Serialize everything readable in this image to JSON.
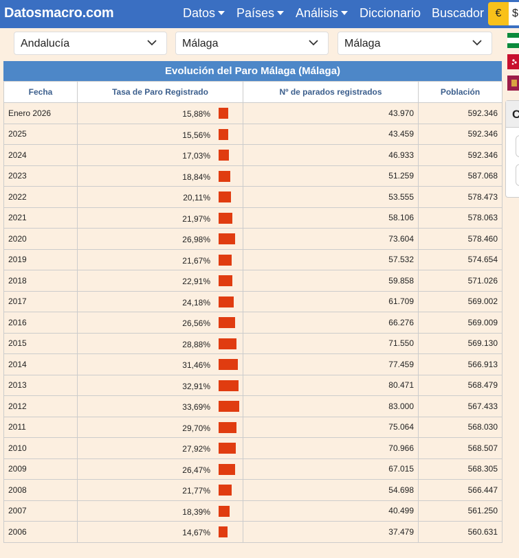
{
  "navbar": {
    "brand": "Datosmacro.com",
    "items": [
      {
        "label": "Datos",
        "dropdown": true
      },
      {
        "label": "Países",
        "dropdown": true
      },
      {
        "label": "Análisis",
        "dropdown": true
      },
      {
        "label": "Diccionario",
        "dropdown": false
      },
      {
        "label": "Buscador",
        "dropdown": false
      }
    ],
    "currency_selected": "€",
    "currency_other": "$",
    "accent": "#3a6fc2",
    "highlight": "#f9c11a"
  },
  "filters": {
    "region": "Andalucía",
    "province": "Málaga",
    "municipality": "Málaga",
    "icon": "chevron-down-icon"
  },
  "side_panel": {
    "heading": "C"
  },
  "table": {
    "caption": "Evolución del Paro Málaga (Málaga)",
    "headers": {
      "fecha": "Fecha",
      "tasa": "Tasa de Paro Registrado",
      "parados": "Nº de parados registrados",
      "poblacion": "Población"
    },
    "bar_color": "#e03c10",
    "rows": [
      {
        "fecha": "Enero 2026",
        "tasa": "15,88%",
        "tasa_value": 15.88,
        "parados": "43.970",
        "poblacion": "592.346"
      },
      {
        "fecha": "2025",
        "tasa": "15,56%",
        "tasa_value": 15.56,
        "parados": "43.459",
        "poblacion": "592.346"
      },
      {
        "fecha": "2024",
        "tasa": "17,03%",
        "tasa_value": 17.03,
        "parados": "46.933",
        "poblacion": "592.346"
      },
      {
        "fecha": "2023",
        "tasa": "18,84%",
        "tasa_value": 18.84,
        "parados": "51.259",
        "poblacion": "587.068"
      },
      {
        "fecha": "2022",
        "tasa": "20,11%",
        "tasa_value": 20.11,
        "parados": "53.555",
        "poblacion": "578.473"
      },
      {
        "fecha": "2021",
        "tasa": "21,97%",
        "tasa_value": 21.97,
        "parados": "58.106",
        "poblacion": "578.063"
      },
      {
        "fecha": "2020",
        "tasa": "26,98%",
        "tasa_value": 26.98,
        "parados": "73.604",
        "poblacion": "578.460"
      },
      {
        "fecha": "2019",
        "tasa": "21,67%",
        "tasa_value": 21.67,
        "parados": "57.532",
        "poblacion": "574.654"
      },
      {
        "fecha": "2018",
        "tasa": "22,91%",
        "tasa_value": 22.91,
        "parados": "59.858",
        "poblacion": "571.026"
      },
      {
        "fecha": "2017",
        "tasa": "24,18%",
        "tasa_value": 24.18,
        "parados": "61.709",
        "poblacion": "569.002"
      },
      {
        "fecha": "2016",
        "tasa": "26,56%",
        "tasa_value": 26.56,
        "parados": "66.276",
        "poblacion": "569.009"
      },
      {
        "fecha": "2015",
        "tasa": "28,88%",
        "tasa_value": 28.88,
        "parados": "71.550",
        "poblacion": "569.130"
      },
      {
        "fecha": "2014",
        "tasa": "31,46%",
        "tasa_value": 31.46,
        "parados": "77.459",
        "poblacion": "566.913"
      },
      {
        "fecha": "2013",
        "tasa": "32,91%",
        "tasa_value": 32.91,
        "parados": "80.471",
        "poblacion": "568.479"
      },
      {
        "fecha": "2012",
        "tasa": "33,69%",
        "tasa_value": 33.69,
        "parados": "83.000",
        "poblacion": "567.433"
      },
      {
        "fecha": "2011",
        "tasa": "29,70%",
        "tasa_value": 29.7,
        "parados": "75.064",
        "poblacion": "568.030"
      },
      {
        "fecha": "2010",
        "tasa": "27,92%",
        "tasa_value": 27.92,
        "parados": "70.966",
        "poblacion": "568.507"
      },
      {
        "fecha": "2009",
        "tasa": "26,47%",
        "tasa_value": 26.47,
        "parados": "67.015",
        "poblacion": "568.305"
      },
      {
        "fecha": "2008",
        "tasa": "21,77%",
        "tasa_value": 21.77,
        "parados": "54.698",
        "poblacion": "566.447"
      },
      {
        "fecha": "2007",
        "tasa": "18,39%",
        "tasa_value": 18.39,
        "parados": "40.499",
        "poblacion": "561.250"
      },
      {
        "fecha": "2006",
        "tasa": "14,67%",
        "tasa_value": 14.67,
        "parados": "37.479",
        "poblacion": "560.631"
      }
    ]
  }
}
